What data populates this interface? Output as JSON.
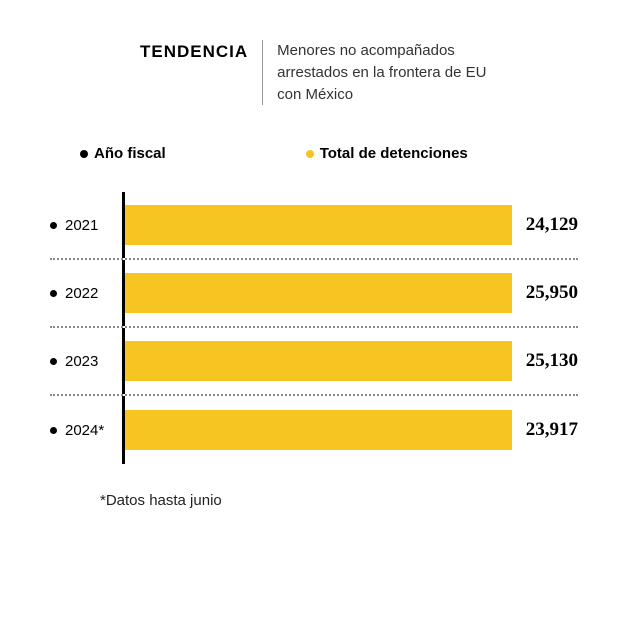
{
  "header": {
    "title": "TENDENCIA",
    "subtitle": "Menores no acompañados arrestados en la frontera de EU con México"
  },
  "legend": {
    "left_label": "Año fiscal",
    "left_dot_color": "#000000",
    "right_label": "Total de detenciones",
    "right_dot_color": "#f7c521"
  },
  "chart": {
    "type": "bar",
    "bar_color": "#f7c521",
    "axis_color": "#000000",
    "dot_line_color": "#888888",
    "max_value": 28000,
    "rows": [
      {
        "year": "2021",
        "value": 24129,
        "value_label": "24,129"
      },
      {
        "year": "2022",
        "value": 25950,
        "value_label": "25,950"
      },
      {
        "year": "2023",
        "value": 25130,
        "value_label": "25,130"
      },
      {
        "year": "2024*",
        "value": 23917,
        "value_label": "23,917"
      }
    ]
  },
  "footnote": "*Datos hasta junio"
}
